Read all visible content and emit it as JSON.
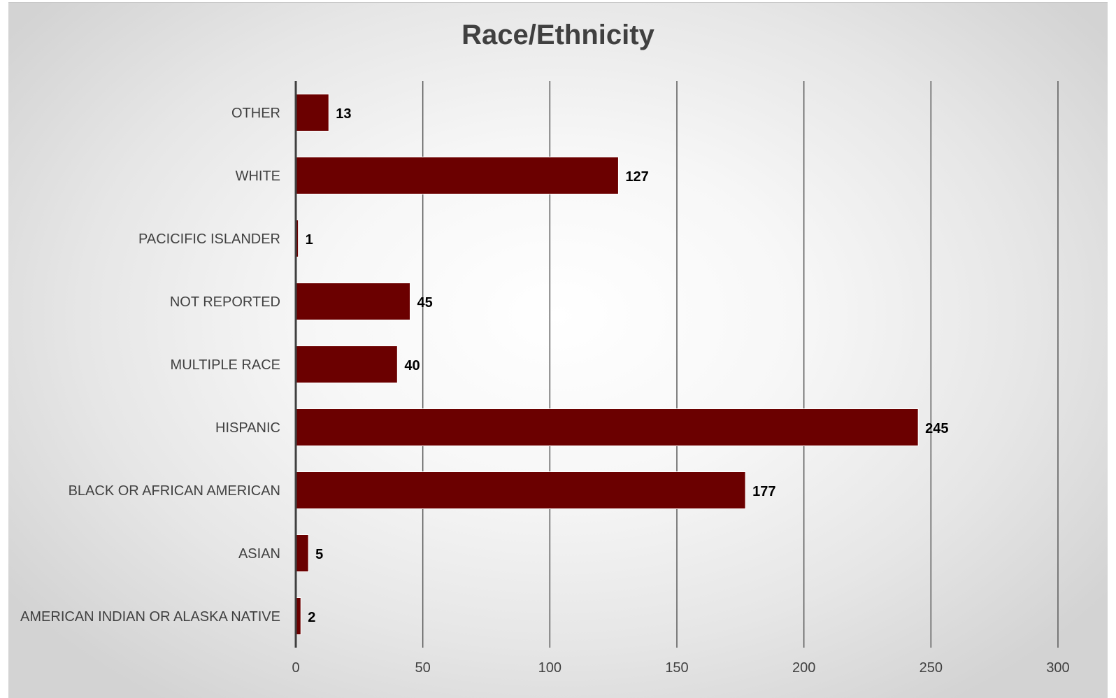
{
  "chart_data": {
    "type": "bar",
    "orientation": "horizontal",
    "title": "Race/Ethnicity",
    "categories": [
      "AMERICAN INDIAN OR ALASKA NATIVE",
      "ASIAN",
      "BLACK OR AFRICAN AMERICAN",
      "HISPANIC",
      "MULTIPLE RACE",
      "NOT REPORTED",
      "PACICIFIC ISLANDER",
      "WHITE",
      "OTHER"
    ],
    "values": [
      2,
      5,
      177,
      245,
      40,
      45,
      1,
      127,
      13
    ],
    "xlim": [
      0,
      300
    ],
    "xticks": [
      0,
      50,
      100,
      150,
      200,
      250,
      300
    ],
    "grid": "vertical",
    "legend": "none",
    "data_labels": true,
    "bar_color": "#6b0000",
    "gridline_color": "#595959"
  }
}
